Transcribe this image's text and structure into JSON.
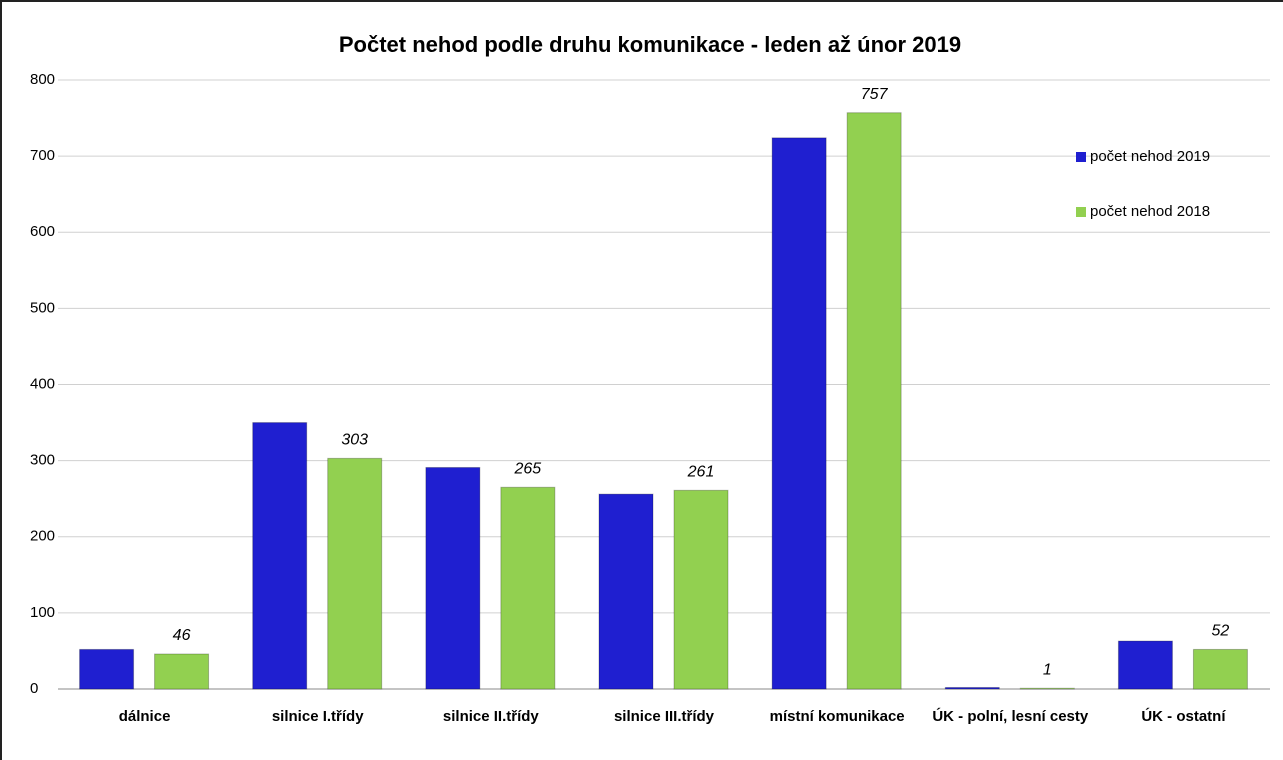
{
  "chart_data": {
    "type": "bar",
    "title": "Počtet nehod podle druhu komunikace - leden až únor 2019",
    "categories": [
      "dálnice",
      "silnice I.třídy",
      "silnice II.třídy",
      "silnice III.třídy",
      "místní komunikace",
      "ÚK -  polní, lesní cesty",
      "ÚK - ostatní"
    ],
    "series": [
      {
        "name": "počet nehod 2019",
        "color": "#1f1fd0",
        "values": [
          52,
          350,
          291,
          256,
          724,
          2,
          63
        ],
        "labels": false
      },
      {
        "name": "počet nehod 2018",
        "color": "#92d050",
        "values": [
          46,
          303,
          265,
          261,
          757,
          1,
          52
        ],
        "labels": true
      }
    ],
    "ylim": [
      0,
      800
    ],
    "yticks": [
      0,
      100,
      200,
      300,
      400,
      500,
      600,
      700,
      800
    ],
    "grid": true,
    "legend": "right"
  }
}
